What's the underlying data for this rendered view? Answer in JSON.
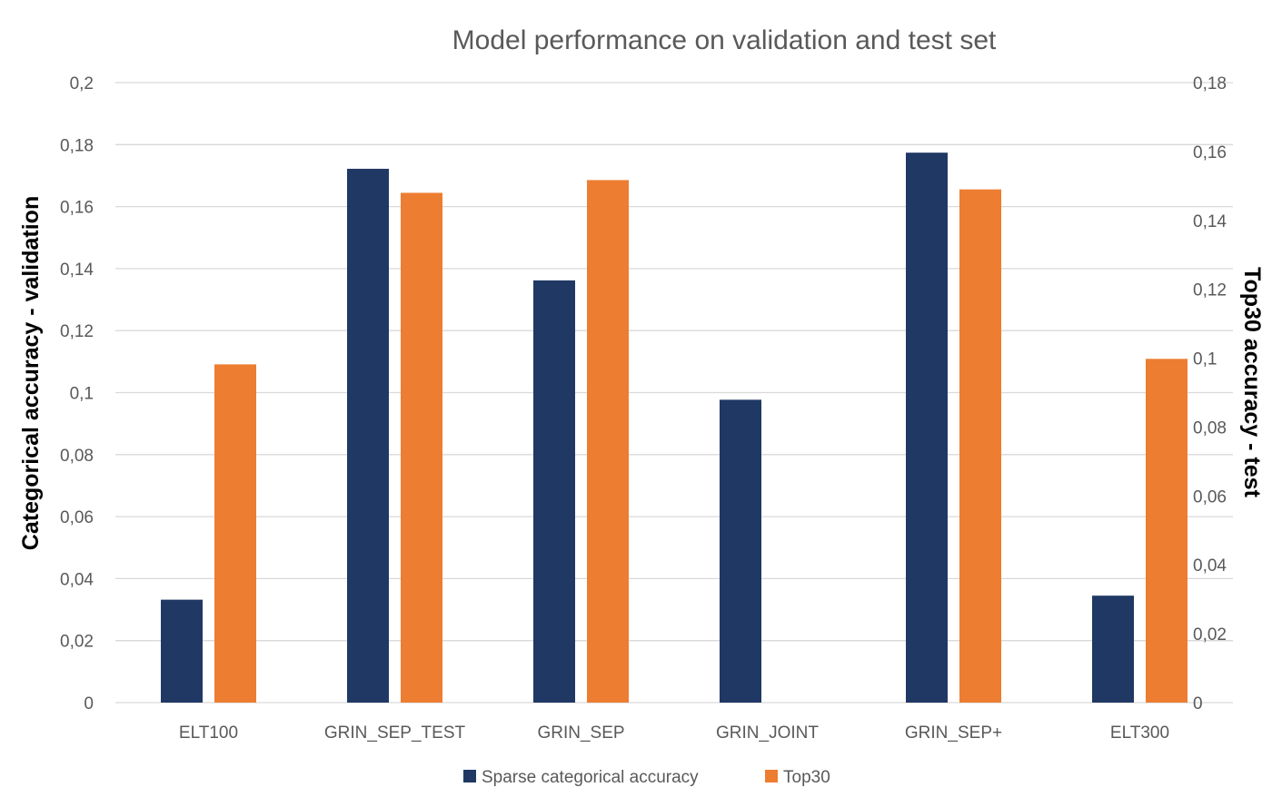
{
  "chart_data": {
    "type": "bar",
    "title": "Model performance on validation and test set",
    "categories": [
      "ELT100",
      "GRIN_SEP_TEST",
      "GRIN_SEP",
      "GRIN_JOINT",
      "GRIN_SEP+",
      "ELT300"
    ],
    "y_left": {
      "label": "Categorical accuracy - validation",
      "ylim": [
        0,
        0.2
      ],
      "ticks": [
        "0",
        "0,02",
        "0,04",
        "0,06",
        "0,08",
        "0,1",
        "0,12",
        "0,14",
        "0,16",
        "0,18",
        "0,2"
      ]
    },
    "y_right": {
      "label": "Top30 accuracy - test",
      "ylim": [
        0,
        0.18
      ],
      "ticks": [
        "0",
        "0,02",
        "0,04",
        "0,06",
        "0,08",
        "0,1",
        "0,12",
        "0,14",
        "0,16",
        "0,18"
      ]
    },
    "series": [
      {
        "name": "Sparse categorical accuracy",
        "axis": "left",
        "color": "#203864",
        "values": [
          0.0332,
          0.1722,
          0.1362,
          0.0977,
          0.1774,
          0.0345
        ]
      },
      {
        "name": "Top30",
        "axis": "right",
        "color": "#ED7D31",
        "values": [
          0.0982,
          0.148,
          0.1517,
          0,
          0.149,
          0.0998
        ]
      }
    ],
    "grid": true,
    "legend": "bottom"
  }
}
